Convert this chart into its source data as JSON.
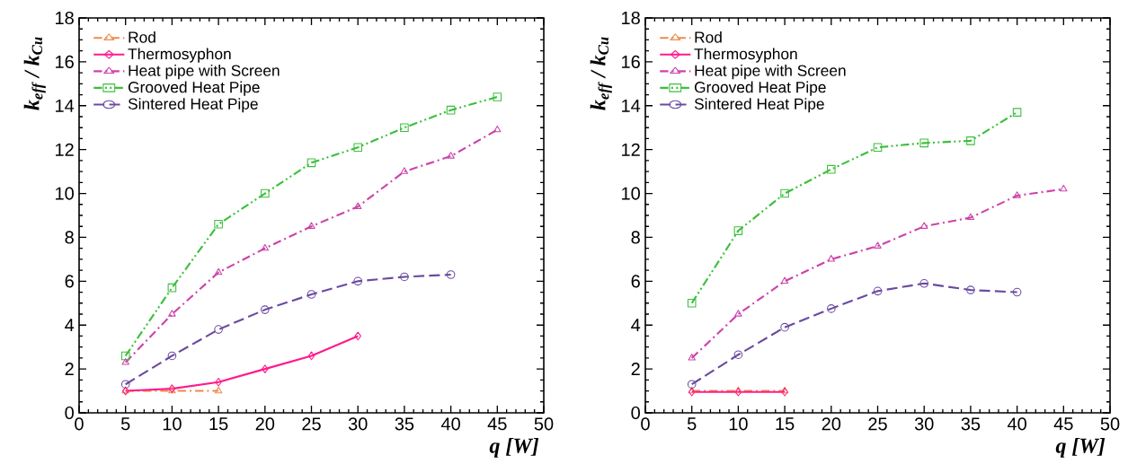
{
  "chart_data": [
    {
      "type": "line",
      "xlabel": "q [W]",
      "ylabel": "k$_{eff}$ / k$_{Cu}$",
      "xlim": [
        0,
        50
      ],
      "ylim": [
        0,
        18
      ],
      "xticks": [
        0,
        5,
        10,
        15,
        20,
        25,
        30,
        35,
        40,
        45,
        50
      ],
      "yticks": [
        0,
        2,
        4,
        6,
        8,
        10,
        12,
        14,
        16,
        18
      ],
      "grid": false,
      "legend": "top left",
      "series": [
        {
          "name": "Rod",
          "color": "#f08a4b",
          "line_style": "dashdot",
          "marker": "triangle",
          "x": [
            5,
            10,
            15
          ],
          "values": [
            1.0,
            1.0,
            1.0
          ]
        },
        {
          "name": "Thermosyphon",
          "color": "#ff1a8c",
          "line_style": "solid",
          "marker": "diamond",
          "x": [
            5,
            10,
            15,
            20,
            25,
            30
          ],
          "values": [
            1.0,
            1.1,
            1.4,
            2.0,
            2.6,
            3.5
          ]
        },
        {
          "name": "Heat pipe with Screen",
          "color": "#cc44aa",
          "line_style": "dashdot",
          "marker": "triangle",
          "x": [
            5,
            10,
            15,
            20,
            25,
            30,
            35,
            40,
            45
          ],
          "values": [
            2.3,
            4.5,
            6.4,
            7.5,
            8.5,
            9.4,
            11.0,
            11.7,
            12.9
          ]
        },
        {
          "name": "Grooved Heat Pipe",
          "color": "#3cbf3c",
          "line_style": "dashdotdot",
          "marker": "square",
          "x": [
            5,
            10,
            15,
            20,
            25,
            30,
            35,
            40,
            45
          ],
          "values": [
            2.6,
            5.7,
            8.6,
            10.0,
            11.4,
            12.1,
            13.0,
            13.8,
            14.4
          ]
        },
        {
          "name": "Sintered Heat Pipe",
          "color": "#6a4aa0",
          "line_style": "dashed",
          "marker": "circle",
          "x": [
            5,
            10,
            15,
            20,
            25,
            30,
            35,
            40
          ],
          "values": [
            1.3,
            2.6,
            3.8,
            4.7,
            5.4,
            6.0,
            6.2,
            6.3
          ]
        }
      ]
    },
    {
      "type": "line",
      "xlabel": "q [W]",
      "ylabel": "k$_{eff}$ / k$_{Cu}$",
      "xlim": [
        0,
        50
      ],
      "ylim": [
        0,
        18
      ],
      "xticks": [
        0,
        5,
        10,
        15,
        20,
        25,
        30,
        35,
        40,
        45,
        50
      ],
      "yticks": [
        0,
        2,
        4,
        6,
        8,
        10,
        12,
        14,
        16,
        18
      ],
      "grid": false,
      "legend": "top left",
      "series": [
        {
          "name": "Rod",
          "color": "#f08a4b",
          "line_style": "dashdot",
          "marker": "triangle",
          "x": [
            5,
            10,
            15
          ],
          "values": [
            1.0,
            1.0,
            1.0
          ]
        },
        {
          "name": "Thermosyphon",
          "color": "#ff1a8c",
          "line_style": "solid",
          "marker": "diamond",
          "x": [
            5,
            10,
            15
          ],
          "values": [
            0.95,
            0.95,
            0.95
          ]
        },
        {
          "name": "Heat pipe with Screen",
          "color": "#cc44aa",
          "line_style": "dashdot",
          "marker": "triangle",
          "x": [
            5,
            10,
            15,
            20,
            25,
            30,
            35,
            40,
            45
          ],
          "values": [
            2.5,
            4.5,
            6.0,
            7.0,
            7.6,
            8.5,
            8.9,
            9.9,
            10.2
          ]
        },
        {
          "name": "Grooved Heat Pipe",
          "color": "#3cbf3c",
          "line_style": "dashdotdot",
          "marker": "square",
          "x": [
            5,
            10,
            15,
            20,
            25,
            30,
            35,
            40
          ],
          "values": [
            5.0,
            8.3,
            10.0,
            11.1,
            12.1,
            12.3,
            12.4,
            13.7
          ]
        },
        {
          "name": "Sintered Heat Pipe",
          "color": "#6a4aa0",
          "line_style": "dashed",
          "marker": "circle",
          "x": [
            5,
            10,
            15,
            20,
            25,
            30,
            35,
            40
          ],
          "values": [
            1.3,
            2.65,
            3.9,
            4.75,
            5.55,
            5.9,
            5.6,
            5.5
          ]
        }
      ]
    }
  ]
}
